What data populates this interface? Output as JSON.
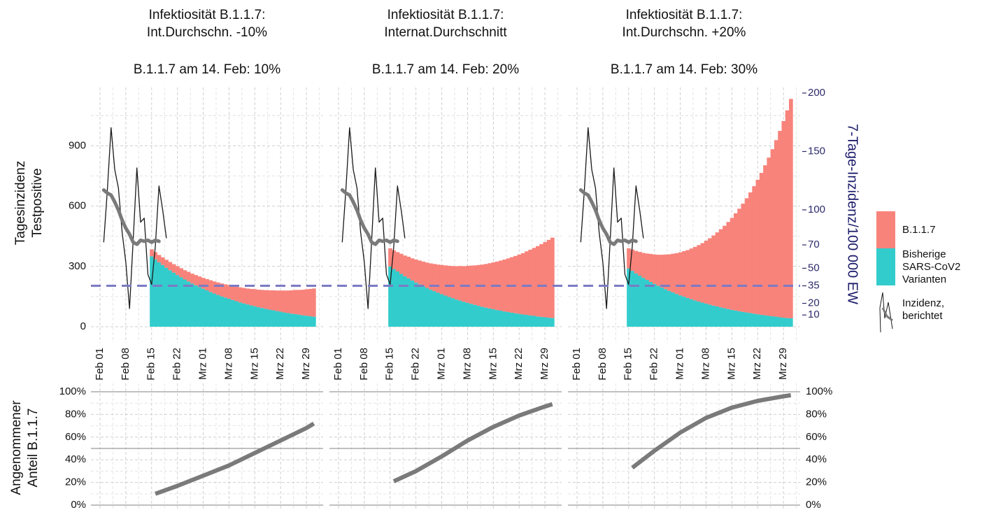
{
  "chart_data": {
    "type": "bar",
    "stacked": true,
    "x": [
      "Feb 01",
      "Feb 02",
      "Feb 03",
      "Feb 04",
      "Feb 05",
      "Feb 06",
      "Feb 07",
      "Feb 08",
      "Feb 09",
      "Feb 10",
      "Feb 11",
      "Feb 12",
      "Feb 13",
      "Feb 14",
      "Feb 15",
      "Feb 16",
      "Feb 17",
      "Feb 18",
      "Feb 19",
      "Feb 20",
      "Feb 21",
      "Feb 22",
      "Feb 23",
      "Feb 24",
      "Feb 25",
      "Feb 26",
      "Feb 27",
      "Feb 28",
      "Mrz 01",
      "Mrz 02",
      "Mrz 03",
      "Mrz 04",
      "Mrz 05",
      "Mrz 06",
      "Mrz 07",
      "Mrz 08",
      "Mrz 09",
      "Mrz 10",
      "Mrz 11",
      "Mrz 12",
      "Mrz 13",
      "Mrz 14",
      "Mrz 15",
      "Mrz 16",
      "Mrz 17",
      "Mrz 18",
      "Mrz 19",
      "Mrz 20",
      "Mrz 21",
      "Mrz 22",
      "Mrz 23",
      "Mrz 24",
      "Mrz 25",
      "Mrz 26",
      "Mrz 27",
      "Mrz 28",
      "Mrz 29",
      "Mrz 30",
      "Mrz 31"
    ],
    "xticks": [
      "Feb 01",
      "Feb 08",
      "Feb 15",
      "Feb 22",
      "Mrz 01",
      "Mrz 08",
      "Mrz 15",
      "Mrz 22",
      "Mrz 29"
    ],
    "ylim": [
      -80,
      1190
    ],
    "yticks": [
      0,
      300,
      600,
      900
    ],
    "y2lim": [
      -13.8,
      204.8
    ],
    "y2ticks": [
      10,
      20,
      35,
      50,
      70,
      100,
      150,
      200
    ],
    "threshold": 35,
    "threshold_color": "#7b7bc4",
    "grid": true,
    "ylabel": [
      "Tagesinzidenz",
      "Testpositive"
    ],
    "y2label": "7-Tage-Inzidenz/100 000 EW",
    "legend": [
      {
        "name": "B.1.1.7",
        "color": "#f8837b"
      },
      {
        "name": [
          "Bisherige",
          "SARS-CoV2",
          "Varianten"
        ],
        "color": "#33cccc"
      },
      {
        "name": [
          "Inzidenz,",
          "berichtet"
        ],
        "color": "#1a1a1a"
      }
    ],
    "smoothed_color": "#7a7a7a",
    "reported": [
      null,
      420,
      680,
      990,
      780,
      690,
      470,
      320,
      90,
      430,
      790,
      520,
      540,
      260,
      210,
      400,
      700,
      580,
      440,
      null,
      null,
      null,
      null,
      null,
      null,
      null,
      null,
      null,
      null,
      null,
      null,
      null,
      null,
      null,
      null,
      null,
      null,
      null,
      null,
      null,
      null,
      null,
      null,
      null,
      null,
      null,
      null,
      null,
      null,
      null,
      null,
      null,
      null,
      null,
      null,
      null,
      null,
      null,
      null
    ],
    "smoothed": [
      null,
      680,
      665,
      655,
      620,
      580,
      530,
      490,
      460,
      420,
      410,
      430,
      425,
      430,
      420,
      430,
      425,
      null,
      null,
      null,
      null,
      null,
      null,
      null,
      null,
      null,
      null,
      null,
      null,
      null,
      null,
      null,
      null,
      null,
      null,
      null,
      null,
      null,
      null,
      null,
      null,
      null,
      null,
      null,
      null,
      null,
      null,
      null,
      null,
      null,
      null,
      null,
      null,
      null,
      null,
      null,
      null,
      null,
      null
    ],
    "panels": [
      {
        "title": [
          "Infektiosität B.1.1.7:",
          "Int.Durchschn. -10%"
        ],
        "subtitle": "B.1.1.7 am 14. Feb: 10%",
        "series": [
          {
            "values": [
              null,
              null,
              null,
              null,
              null,
              null,
              null,
              null,
              null,
              null,
              null,
              null,
              null,
              null,
              35,
              36,
              37,
              38,
              40,
              41,
              42,
              44,
              45,
              46,
              48,
              49,
              51,
              53,
              54,
              56,
              58,
              60,
              62,
              64,
              66,
              68,
              70,
              72,
              75,
              77,
              79,
              82,
              85,
              87,
              90,
              93,
              96,
              99,
              102,
              105,
              109,
              112,
              116,
              120,
              123,
              127,
              131,
              136,
              140
            ]
          },
          {
            "values": [
              null,
              null,
              null,
              null,
              null,
              null,
              null,
              null,
              null,
              null,
              null,
              null,
              null,
              null,
              350,
              335,
              320,
              307,
              293,
              281,
              269,
              257,
              246,
              235,
              225,
              215,
              206,
              197,
              189,
              181,
              173,
              165,
              158,
              151,
              145,
              139,
              133,
              127,
              121,
              116,
              111,
              106,
              102,
              97,
              93,
              89,
              85,
              82,
              78,
              75,
              71,
              68,
              65,
              63,
              60,
              57,
              55,
              52,
              50
            ]
          }
        ],
        "share": [
          10,
          17,
          26,
          35,
          46,
          57,
          68,
          72
        ]
      },
      {
        "title": [
          "Infektiosität B.1.1.7:",
          "Internat.Durchschnitt"
        ],
        "subtitle": "B.1.1.7 am 14. Feb: 20%",
        "series": [
          {
            "values": [
              null,
              null,
              null,
              null,
              null,
              null,
              null,
              null,
              null,
              null,
              null,
              null,
              null,
              null,
              90,
              93,
              96,
              100,
              103,
              107,
              110,
              114,
              118,
              122,
              126,
              131,
              135,
              140,
              145,
              150,
              155,
              160,
              166,
              172,
              177,
              184,
              190,
              196,
              203,
              210,
              217,
              225,
              233,
              241,
              249,
              258,
              267,
              276,
              285,
              295,
              305,
              316,
              327,
              338,
              350,
              362,
              374,
              387,
              400
            ]
          },
          {
            "values": [
              null,
              null,
              null,
              null,
              null,
              null,
              null,
              null,
              null,
              null,
              null,
              null,
              null,
              null,
              300,
              287,
              275,
              263,
              251,
              241,
              230,
              220,
              211,
              202,
              193,
              184,
              177,
              169,
              162,
              155,
              148,
              142,
              135,
              130,
              124,
              119,
              114,
              109,
              104,
              99,
              95,
              91,
              87,
              83,
              80,
              76,
              73,
              70,
              67,
              64,
              61,
              59,
              56,
              54,
              51,
              49,
              47,
              45,
              43
            ]
          }
        ],
        "share": [
          21,
          30,
          43,
          57,
          69,
          79,
          87,
          89
        ]
      },
      {
        "title": [
          "Infektiosität B.1.1.7:",
          "Int.Durchschn. +20%"
        ],
        "subtitle": "B.1.1.7 am 14. Feb: 30%",
        "series": [
          {
            "values": [
              null,
              null,
              null,
              null,
              null,
              null,
              null,
              null,
              null,
              null,
              null,
              null,
              null,
              null,
              100,
              106,
              112,
              118,
              124,
              131,
              139,
              146,
              154,
              163,
              172,
              182,
              192,
              203,
              214,
              226,
              238,
              252,
              266,
              281,
              296,
              313,
              330,
              349,
              368,
              389,
              410,
              433,
              457,
              483,
              510,
              538,
              568,
              600,
              634,
              669,
              706,
              746,
              787,
              831,
              878,
              927,
              978,
              1033,
              1091
            ]
          },
          {
            "values": [
              null,
              null,
              null,
              null,
              null,
              null,
              null,
              null,
              null,
              null,
              null,
              null,
              null,
              null,
              290,
              278,
              265,
              254,
              243,
              233,
              223,
              213,
              204,
              195,
              187,
              178,
              171,
              163,
              156,
              150,
              143,
              137,
              131,
              125,
              120,
              115,
              110,
              105,
              101,
              96,
              92,
              88,
              84,
              81,
              77,
              74,
              71,
              68,
              65,
              62,
              59,
              57,
              54,
              52,
              50,
              47,
              45,
              43,
              42
            ]
          }
        ],
        "share": [
          33,
          48,
          64,
          77,
          86,
          92,
          96,
          97
        ]
      }
    ],
    "share": {
      "type": "line",
      "ylabel": [
        "Angenommener",
        "Anteil B.1.1.7"
      ],
      "x": [
        "Feb 16",
        "Feb 22",
        "Mrz 01",
        "Mrz 08",
        "Mrz 15",
        "Mrz 22",
        "Mrz 29",
        "Mrz 31"
      ],
      "ylim": [
        -4.3,
        107.4
      ],
      "yticks": [
        {
          "value": 0,
          "label": "0%"
        },
        {
          "value": 20,
          "label": "20%"
        },
        {
          "value": 40,
          "label": "40%"
        },
        {
          "value": 60,
          "label": "60%"
        },
        {
          "value": 80,
          "label": "80%"
        },
        {
          "value": 100,
          "label": "100%"
        }
      ],
      "hlines": [
        0,
        50,
        100
      ],
      "color": "#7a7a7a"
    }
  }
}
